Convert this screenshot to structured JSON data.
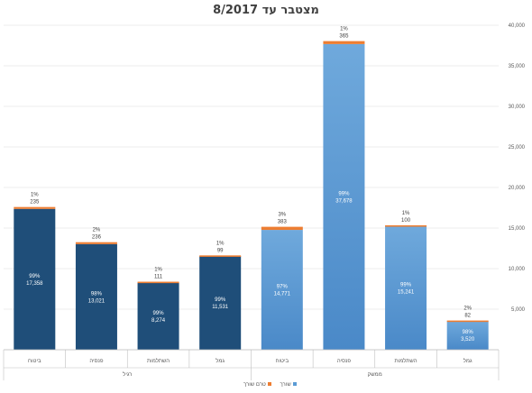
{
  "chart_data": {
    "type": "bar",
    "title": "מצטבר עד 8/2017",
    "groups": [
      {
        "name": "רגיל",
        "categories": [
          "ביטוח",
          "פנסיה",
          "השתלמות",
          "גמל"
        ]
      },
      {
        "name": "ממשק",
        "categories": [
          "ביטוח",
          "פנסיה",
          "השתלמות",
          "גמל"
        ]
      }
    ],
    "categories": [
      "ביטוח",
      "פנסיה",
      "השתלמות",
      "גמל",
      "ביטוח",
      "פנסיה",
      "השתלמות",
      "גמל"
    ],
    "series": [
      {
        "name": "שורך",
        "values": [
          17358,
          13021,
          8274,
          11531,
          14771,
          37678,
          15241,
          3520
        ],
        "labels": [
          "17,358",
          "13,021",
          "8,274",
          "11,531",
          "14,771",
          "37,678",
          "15,241",
          "3,520"
        ],
        "pct_labels": [
          "99%",
          "98%",
          "99%",
          "99%",
          "97%",
          "99%",
          "99%",
          "98%"
        ]
      },
      {
        "name": "טרם שורך",
        "values": [
          235,
          236,
          111,
          99,
          383,
          365,
          100,
          82
        ],
        "labels": [
          "235",
          "236",
          "111",
          "99",
          "383",
          "365",
          "100",
          "82"
        ],
        "pct_labels": [
          "1%",
          "2%",
          "1%",
          "1%",
          "3%",
          "1%",
          "1%",
          "2%"
        ]
      }
    ],
    "y_ticks": [
      "",
      "5,000",
      "10,000",
      "15,000",
      "20,000",
      "25,000",
      "30,000",
      "35,000",
      "40,000"
    ],
    "ylim": [
      0,
      40000
    ],
    "y_axis_side": "right",
    "grid": true,
    "legend_position": "bottom",
    "colors": {
      "group1_fill": "#1f4e79",
      "group2_fill": "#5b9bd5",
      "group2_fill_light": "#6aaae0",
      "orange": "#ed7d31",
      "grid": "#d9d9d9",
      "text": "#595959"
    }
  }
}
